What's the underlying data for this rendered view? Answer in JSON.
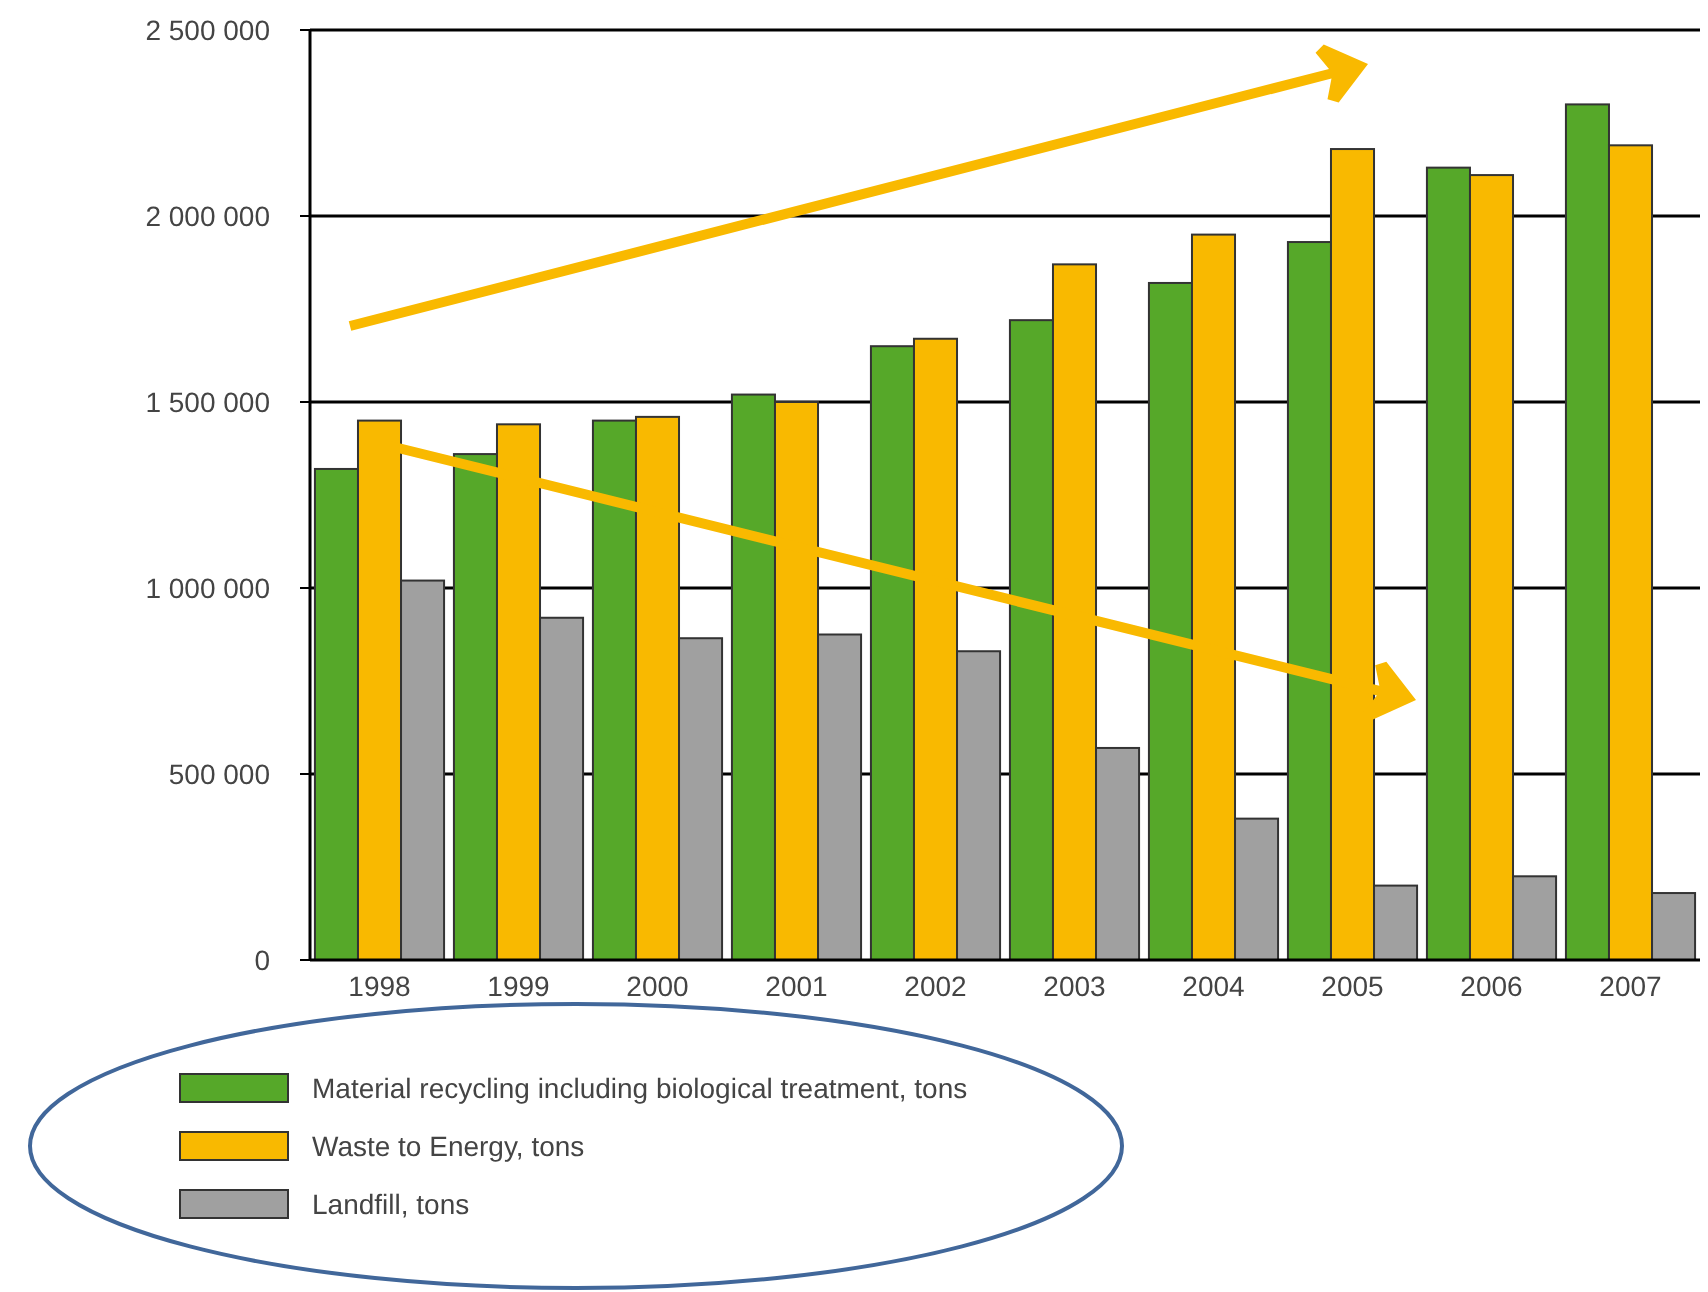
{
  "chart_data": {
    "type": "bar",
    "categories": [
      "1998",
      "1999",
      "2000",
      "2001",
      "2002",
      "2003",
      "2004",
      "2005",
      "2006",
      "2007"
    ],
    "series": [
      {
        "name": "Material recycling including biological treatment, tons",
        "color": "#56a829",
        "values": [
          1320000,
          1360000,
          1450000,
          1520000,
          1650000,
          1720000,
          1820000,
          1930000,
          2130000,
          2300000
        ]
      },
      {
        "name": "Waste to Energy, tons",
        "color": "#f9b900",
        "values": [
          1450000,
          1440000,
          1460000,
          1500000,
          1670000,
          1870000,
          1950000,
          2180000,
          2110000,
          2190000
        ]
      },
      {
        "name": "Landfill, tons",
        "color": "#a0a0a0",
        "values": [
          1020000,
          920000,
          865000,
          875000,
          830000,
          570000,
          380000,
          200000,
          225000,
          180000
        ]
      }
    ],
    "ylim": [
      0,
      2500000
    ],
    "yticks": [
      {
        "value": 0,
        "label": "0"
      },
      {
        "value": 500000,
        "label": "500 000"
      },
      {
        "value": 1000000,
        "label": "1 000 000"
      },
      {
        "value": 1500000,
        "label": "1 500 000"
      },
      {
        "value": 2000000,
        "label": "2 000 000"
      },
      {
        "value": 2500000,
        "label": "2 500 000"
      }
    ],
    "grid": "y",
    "legend": "bottom left"
  }
}
